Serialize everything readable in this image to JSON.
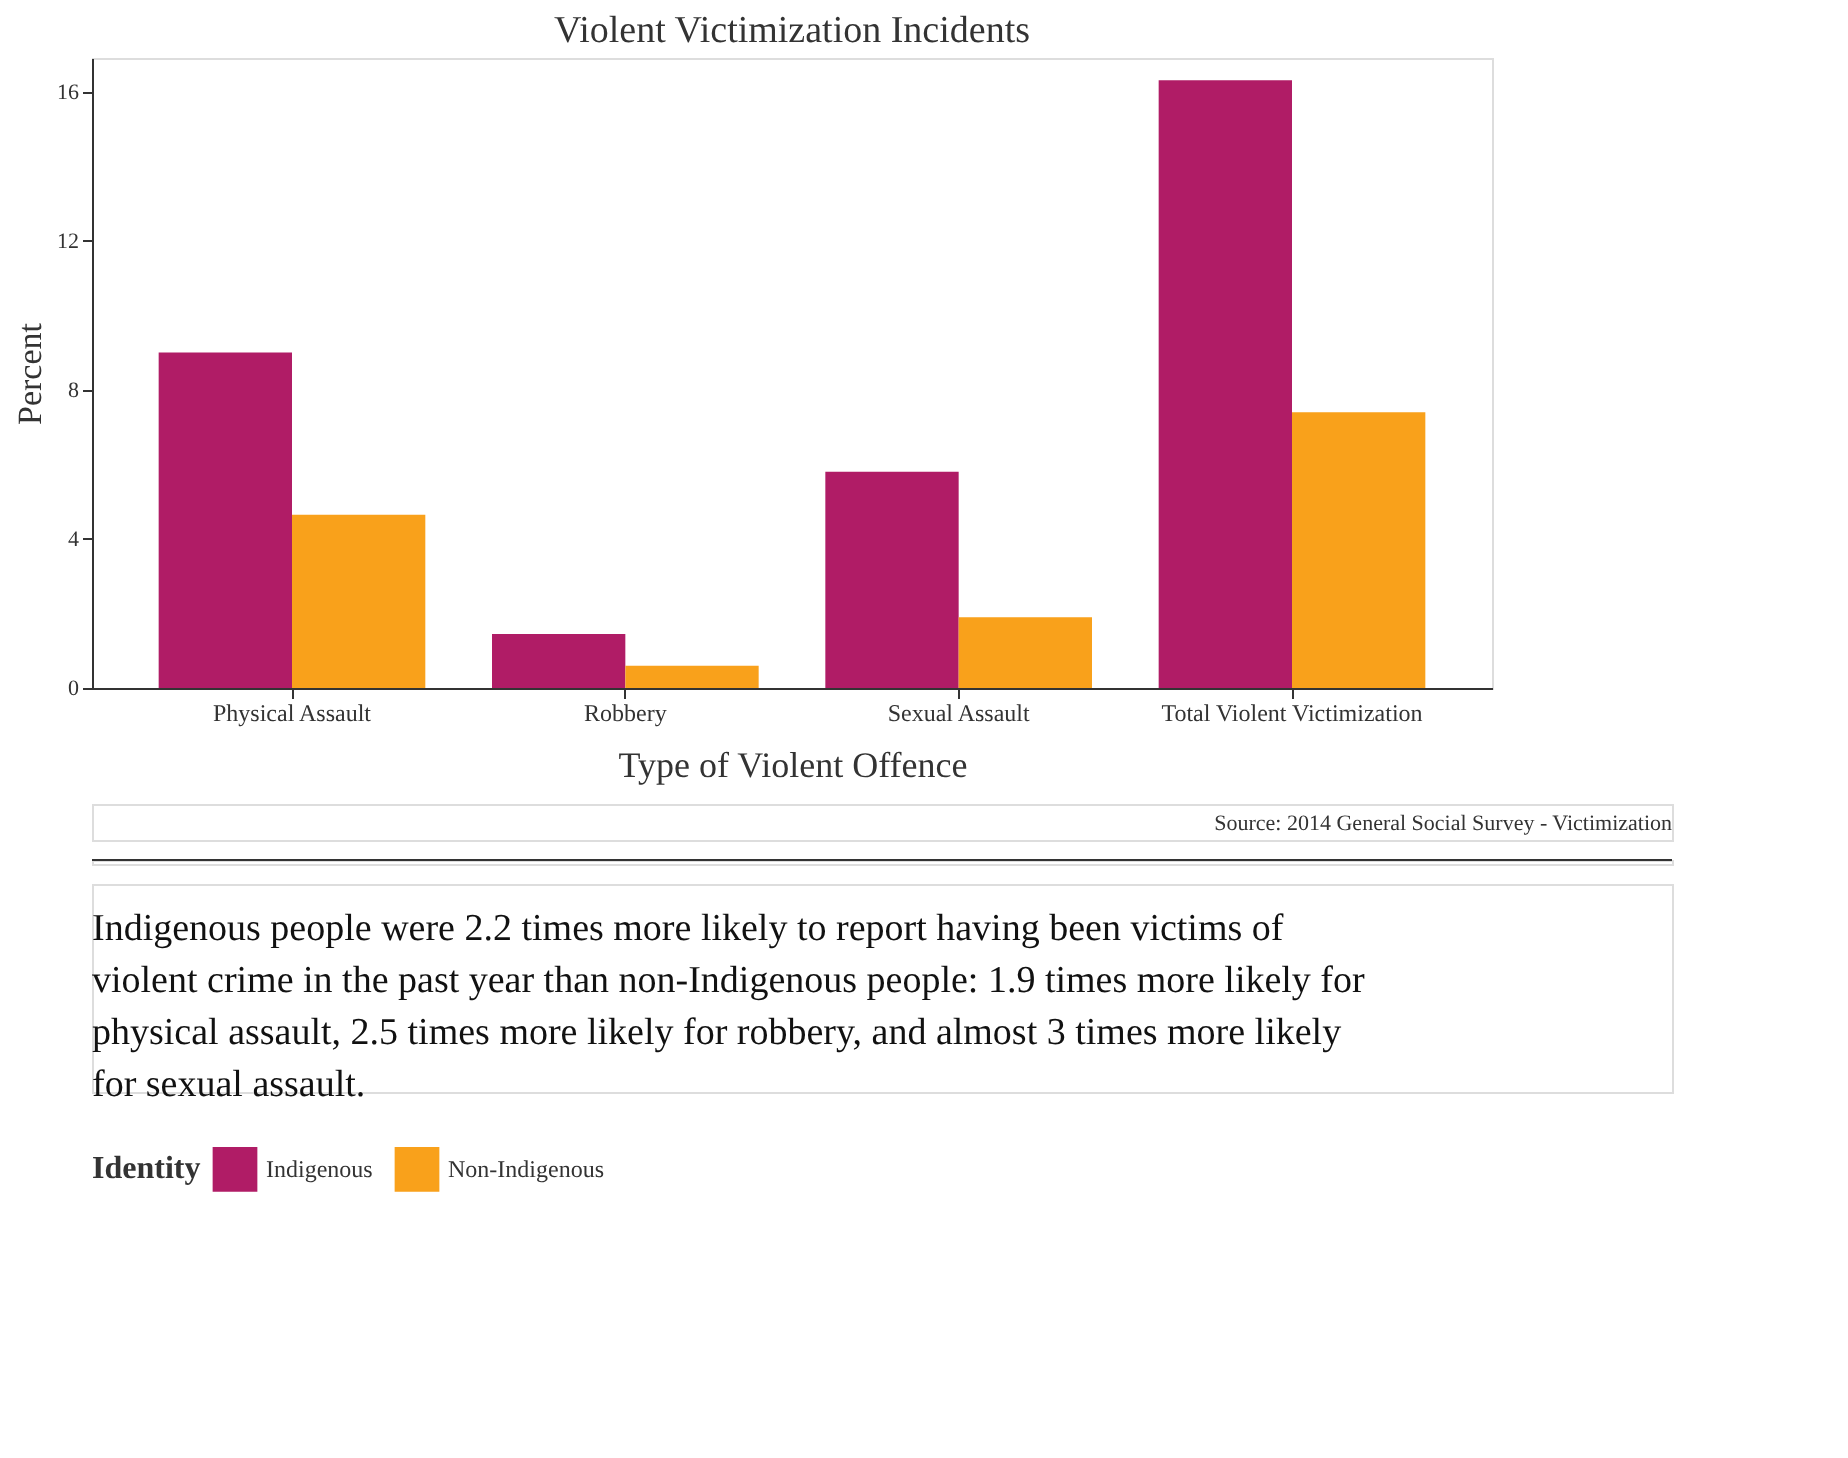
{
  "chart_data": {
    "type": "bar",
    "title": "Violent Victimization Incidents",
    "xlabel": "Type of Violent Offence",
    "ylabel": "Percent",
    "legend_title": "Identity",
    "legend": "bottom",
    "grid": false,
    "categories": [
      "Physical Assault",
      "Robbery",
      "Sexual Assault",
      "Total Violent Victimization"
    ],
    "series": [
      {
        "name": "Indigenous",
        "color": "#b01c66",
        "values": [
          9.0,
          1.45,
          5.8,
          16.3
        ]
      },
      {
        "name": "Non-Indigenous",
        "color": "#f9a11b",
        "values": [
          4.65,
          0.6,
          1.9,
          7.4
        ]
      }
    ],
    "ylim": [
      0,
      16.9
    ],
    "yticks": [
      0,
      4,
      8,
      12,
      16
    ],
    "annotations": [
      "Source: 2014 General Social Survey - Victimization",
      "Indigenous people were 2.2 times more likely to report having been victims of violent crime in the past year than non-Indigenous people: 1.9 times more likely for physical assault, 2.5 times more likely for robbery, and almost 3 times more likely for sexual assault."
    ]
  }
}
